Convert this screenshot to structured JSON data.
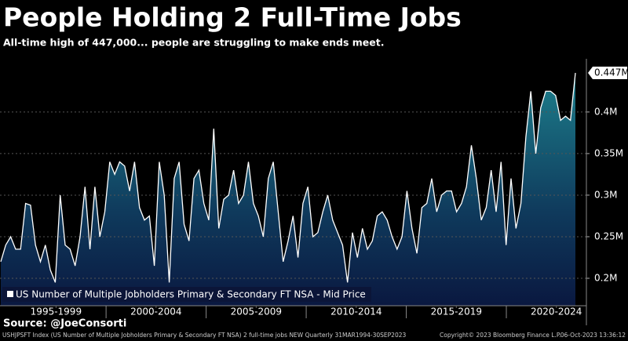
{
  "chart_data": {
    "type": "area-line",
    "title": "People Holding 2 Full-Time Jobs",
    "subtitle": "All-time high of 447,000... people are struggling to make ends meet.",
    "series": [
      {
        "name": "US Number of Multiple Jobholders Primary & Secondary FT NSA - Mid Price",
        "color": "#ffffff",
        "values": [
          0.22,
          0.24,
          0.25,
          0.235,
          0.235,
          0.29,
          0.288,
          0.24,
          0.22,
          0.24,
          0.21,
          0.195,
          0.3,
          0.24,
          0.235,
          0.215,
          0.25,
          0.31,
          0.235,
          0.31,
          0.25,
          0.28,
          0.34,
          0.325,
          0.34,
          0.335,
          0.305,
          0.34,
          0.285,
          0.27,
          0.275,
          0.215,
          0.34,
          0.3,
          0.195,
          0.32,
          0.34,
          0.265,
          0.245,
          0.32,
          0.33,
          0.29,
          0.27,
          0.38,
          0.26,
          0.295,
          0.3,
          0.33,
          0.29,
          0.3,
          0.34,
          0.29,
          0.275,
          0.25,
          0.32,
          0.34,
          0.28,
          0.22,
          0.245,
          0.275,
          0.225,
          0.29,
          0.31,
          0.25,
          0.255,
          0.28,
          0.3,
          0.27,
          0.255,
          0.24,
          0.195,
          0.255,
          0.225,
          0.26,
          0.235,
          0.245,
          0.275,
          0.28,
          0.27,
          0.25,
          0.235,
          0.25,
          0.305,
          0.26,
          0.23,
          0.285,
          0.29,
          0.32,
          0.28,
          0.3,
          0.305,
          0.305,
          0.28,
          0.29,
          0.31,
          0.36,
          0.32,
          0.27,
          0.285,
          0.33,
          0.28,
          0.34,
          0.24,
          0.32,
          0.26,
          0.29,
          0.37,
          0.425,
          0.35,
          0.405,
          0.425,
          0.425,
          0.42,
          0.39,
          0.395,
          0.39,
          0.447
        ],
        "value_labels": [
          null,
          null,
          null,
          null,
          null,
          null,
          null,
          null,
          null,
          null,
          null,
          null,
          null,
          null,
          null,
          null,
          null,
          null,
          null,
          null,
          null,
          null,
          null,
          null,
          null,
          null,
          null,
          null,
          null,
          null,
          null,
          null,
          null,
          null,
          null,
          null,
          null,
          null,
          null,
          null,
          null,
          null,
          null,
          null,
          null,
          null,
          null,
          null,
          null,
          null,
          null,
          null,
          null,
          null,
          null,
          null,
          null,
          null,
          null,
          null,
          null,
          null,
          null,
          null,
          null,
          null,
          null,
          null,
          null,
          null,
          null,
          null,
          null,
          null,
          null,
          null,
          null,
          null,
          null,
          null,
          null,
          null,
          null,
          null,
          null,
          null,
          null,
          null,
          null,
          null,
          null,
          null,
          null,
          null,
          null,
          null,
          null,
          null,
          null,
          null,
          null,
          null,
          null,
          null,
          null,
          null,
          null,
          null,
          null,
          null,
          null,
          null,
          null,
          null,
          null,
          null,
          "0.447M"
        ]
      }
    ],
    "ylim": [
      0.167,
      0.464
    ],
    "yticks": [
      {
        "value": 0.2,
        "label": "0.2M"
      },
      {
        "value": 0.25,
        "label": "0.25M"
      },
      {
        "value": 0.3,
        "label": "0.3M"
      },
      {
        "value": 0.35,
        "label": "0.35M"
      },
      {
        "value": 0.4,
        "label": "0.4M"
      }
    ],
    "xlim": [
      1994.7,
      2024.0
    ],
    "xticks": [
      {
        "value": 1997.5,
        "label": "1995-1999"
      },
      {
        "value": 2002.5,
        "label": "2000-2004"
      },
      {
        "value": 2007.5,
        "label": "2005-2009"
      },
      {
        "value": 2012.5,
        "label": "2010-2014"
      },
      {
        "value": 2017.5,
        "label": "2015-2019"
      },
      {
        "value": 2022.5,
        "label": "2020-2024"
      }
    ],
    "grid": true,
    "source": "Source: @JoeConsorti",
    "footer": {
      "index_text": "USHJPSFT Index (US Number of Multiple Jobholders Primary & Secondary FT NSA) 2 full-time jobs NEW  Quarterly 31MAR1994-30SEP2023",
      "copyright": "Copyright© 2023 Bloomberg Finance L.P.",
      "timestamp": "06-Oct-2023 13:36:12"
    }
  }
}
